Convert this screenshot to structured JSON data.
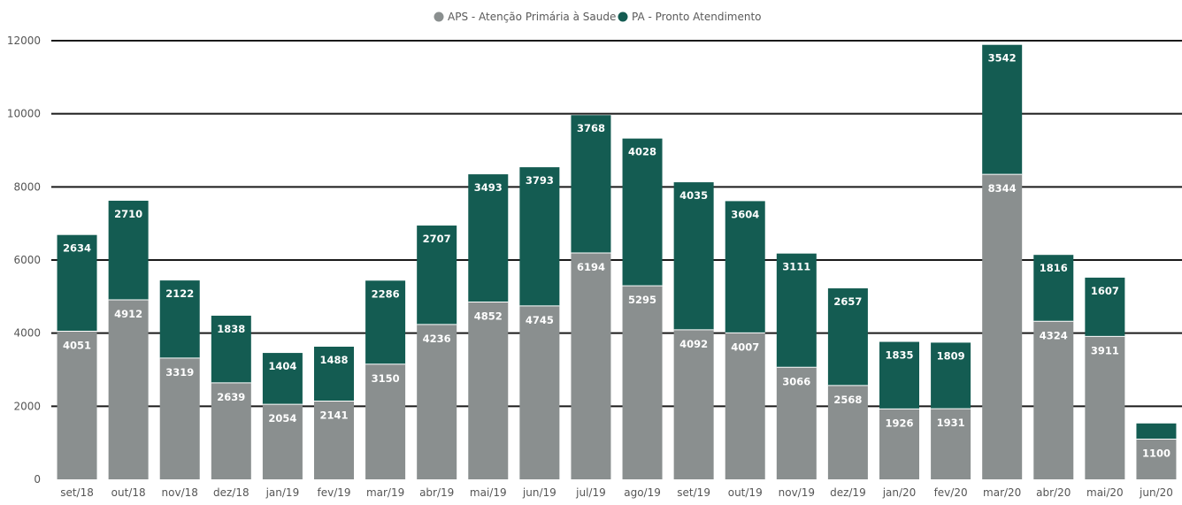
{
  "chart_data": {
    "type": "bar",
    "stacked": true,
    "categories": [
      "set/18",
      "out/18",
      "nov/18",
      "dez/18",
      "jan/19",
      "fev/19",
      "mar/19",
      "abr/19",
      "mai/19",
      "jun/19",
      "jul/19",
      "ago/19",
      "set/19",
      "out/19",
      "nov/19",
      "dez/19",
      "jan/20",
      "fev/20",
      "mar/20",
      "abr/20",
      "mai/20",
      "jun/20"
    ],
    "series": [
      {
        "name": "APS - Atenção Primária à Saude",
        "color": "#8a8f8f",
        "values": [
          4051,
          4912,
          3319,
          2639,
          2054,
          2141,
          3150,
          4236,
          4852,
          4745,
          6194,
          5295,
          4092,
          4007,
          3066,
          2568,
          1926,
          1931,
          8344,
          4324,
          3911,
          1100
        ]
      },
      {
        "name": "PA - Pronto Atendimento",
        "color": "#145c52",
        "values": [
          2634,
          2710,
          2122,
          1838,
          1404,
          1488,
          2286,
          2707,
          3493,
          3793,
          3768,
          4028,
          4035,
          3604,
          3111,
          2657,
          1835,
          1809,
          3542,
          1816,
          1607,
          430
        ]
      }
    ],
    "data_labels": {
      "APS": [
        "4051",
        "4912",
        "3319",
        "2639",
        "2054",
        "2141",
        "3150",
        "4236",
        "4852",
        "4745",
        "6194",
        "5295",
        "4092",
        "4007",
        "3066",
        "2568",
        "1926",
        "1931",
        "8344",
        "4324",
        "3911",
        "1100"
      ],
      "PA": [
        "2634",
        "2710",
        "2122",
        "1838",
        "1404",
        "1488",
        "2286",
        "2707",
        "3493",
        "3793",
        "3768",
        "4028",
        "4035",
        "3604",
        "3111",
        "2657",
        "1835",
        "1809",
        "3542",
        "1816",
        "1607",
        ""
      ]
    },
    "yticks": [
      "0",
      "2000",
      "4000",
      "6000",
      "8000",
      "10000",
      "12000"
    ],
    "ylim": [
      0,
      12000
    ],
    "grid": true,
    "legend_position": "top-center",
    "title": "",
    "xlabel": "",
    "ylabel": ""
  }
}
